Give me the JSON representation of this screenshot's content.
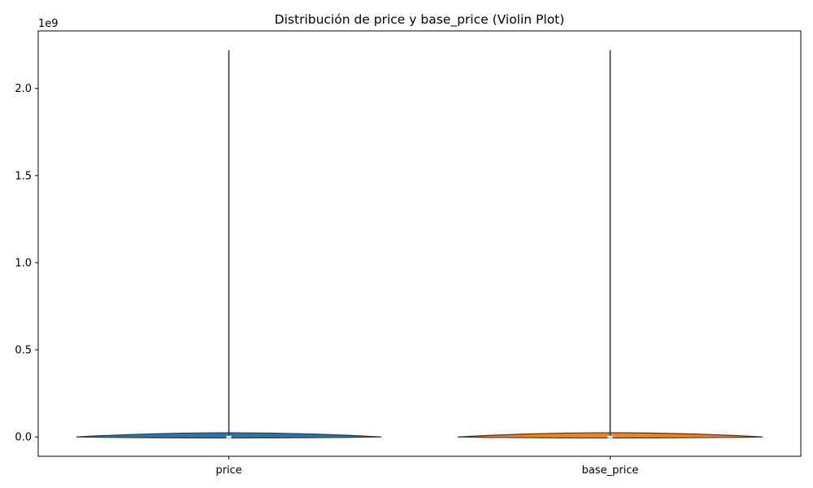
{
  "chart_data": {
    "type": "violin",
    "title": "Distribución de price y base_price (Violin Plot)",
    "xlabel": "",
    "ylabel": "",
    "y_offset_label": "1e9",
    "categories": [
      "price",
      "base_price"
    ],
    "colors": [
      "#1f77b4",
      "#ff7f0e"
    ],
    "ylim": [
      -0.111,
      2.33
    ],
    "yticks": [
      0.0,
      0.5,
      1.0,
      1.5,
      2.0
    ],
    "ytick_labels": [
      "0.0",
      "0.5",
      "1.0",
      "1.5",
      "2.0"
    ],
    "grid": false,
    "series": [
      {
        "values_summary": {
          "min": 0.0,
          "max": 2.22,
          "median": 0.0,
          "q1": 0.0,
          "q3": 0.005
        }
      },
      {
        "values_summary": {
          "min": 0.0,
          "max": 2.22,
          "median": 0.0,
          "q1": 0.0,
          "q3": 0.005
        }
      }
    ]
  }
}
